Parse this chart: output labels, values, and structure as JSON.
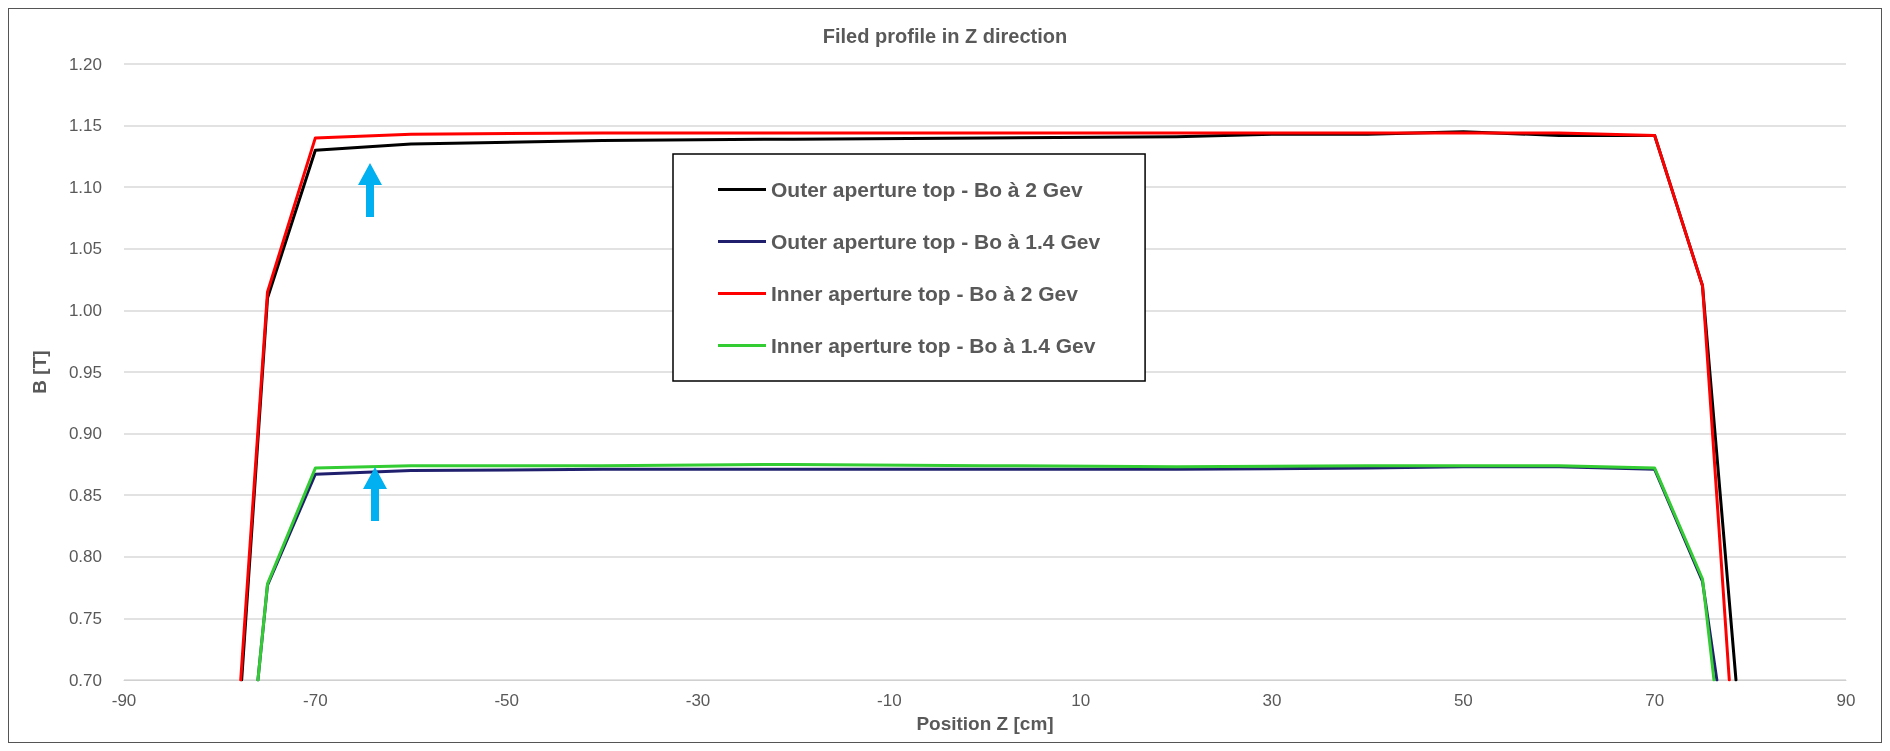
{
  "chart_data": {
    "type": "line",
    "title": "Filed profile in Z direction",
    "xlabel": "Position Z [cm]",
    "ylabel": "B [T]",
    "xlim": [
      -90,
      90
    ],
    "xticks": [
      -90,
      -70,
      -50,
      -30,
      -10,
      10,
      30,
      50,
      70,
      90
    ],
    "ylim": [
      0.7,
      1.2
    ],
    "yticks": [
      {
        "value": 0.7,
        "label": "0.70"
      },
      0.75,
      {
        "value": 0.8,
        "label": "0.80"
      },
      0.85,
      {
        "value": 0.9,
        "label": "0.90"
      },
      0.95,
      {
        "value": 1,
        "label": "1.00"
      },
      1.05,
      {
        "value": 1.1,
        "label": "1.10"
      },
      1.15,
      {
        "value": 1.2,
        "label": "1.20"
      }
    ],
    "grid": "y",
    "legend": "top",
    "marker": "none",
    "line_style": "solid",
    "series": [
      {
        "name": "Outer aperture top - Bo à 2 Gev",
        "color": "#000000",
        "x": [
          -77.7,
          -75,
          -70,
          -60,
          -40,
          -20,
          0,
          20,
          30,
          40,
          50,
          60,
          70,
          75,
          78.5
        ],
        "values": [
          0.7,
          1.01,
          1.13,
          1.135,
          1.138,
          1.139,
          1.14,
          1.141,
          1.143,
          1.143,
          1.145,
          1.142,
          1.142,
          1.02,
          0.7
        ]
      },
      {
        "name": "Outer aperture top - Bo à 1.4 Gev",
        "color": "#1f1f6e",
        "x": [
          -76,
          -75,
          -70,
          -60,
          -40,
          -20,
          0,
          20,
          40,
          50,
          60,
          70,
          75,
          76.5
        ],
        "values": [
          0.7,
          0.777,
          0.867,
          0.87,
          0.871,
          0.871,
          0.871,
          0.871,
          0.872,
          0.873,
          0.873,
          0.871,
          0.78,
          0.7
        ]
      },
      {
        "name": "Inner aperture top - Bo à 2 Gev",
        "color": "#ff0000",
        "x": [
          -77.8,
          -75,
          -70,
          -60,
          -40,
          -20,
          0,
          20,
          40,
          50,
          60,
          70,
          75,
          77.8
        ],
        "values": [
          0.7,
          1.015,
          1.14,
          1.143,
          1.144,
          1.144,
          1.144,
          1.144,
          1.144,
          1.144,
          1.144,
          1.142,
          1.02,
          0.7
        ]
      },
      {
        "name": "Inner aperture top - Bo à 1.4 Gev",
        "color": "#33cc33",
        "x": [
          -76,
          -75,
          -70,
          -60,
          -40,
          -20,
          0,
          20,
          40,
          60,
          70,
          75,
          76.2
        ],
        "values": [
          0.7,
          0.778,
          0.872,
          0.874,
          0.874,
          0.875,
          0.874,
          0.873,
          0.874,
          0.874,
          0.872,
          0.782,
          0.7
        ]
      }
    ]
  }
}
